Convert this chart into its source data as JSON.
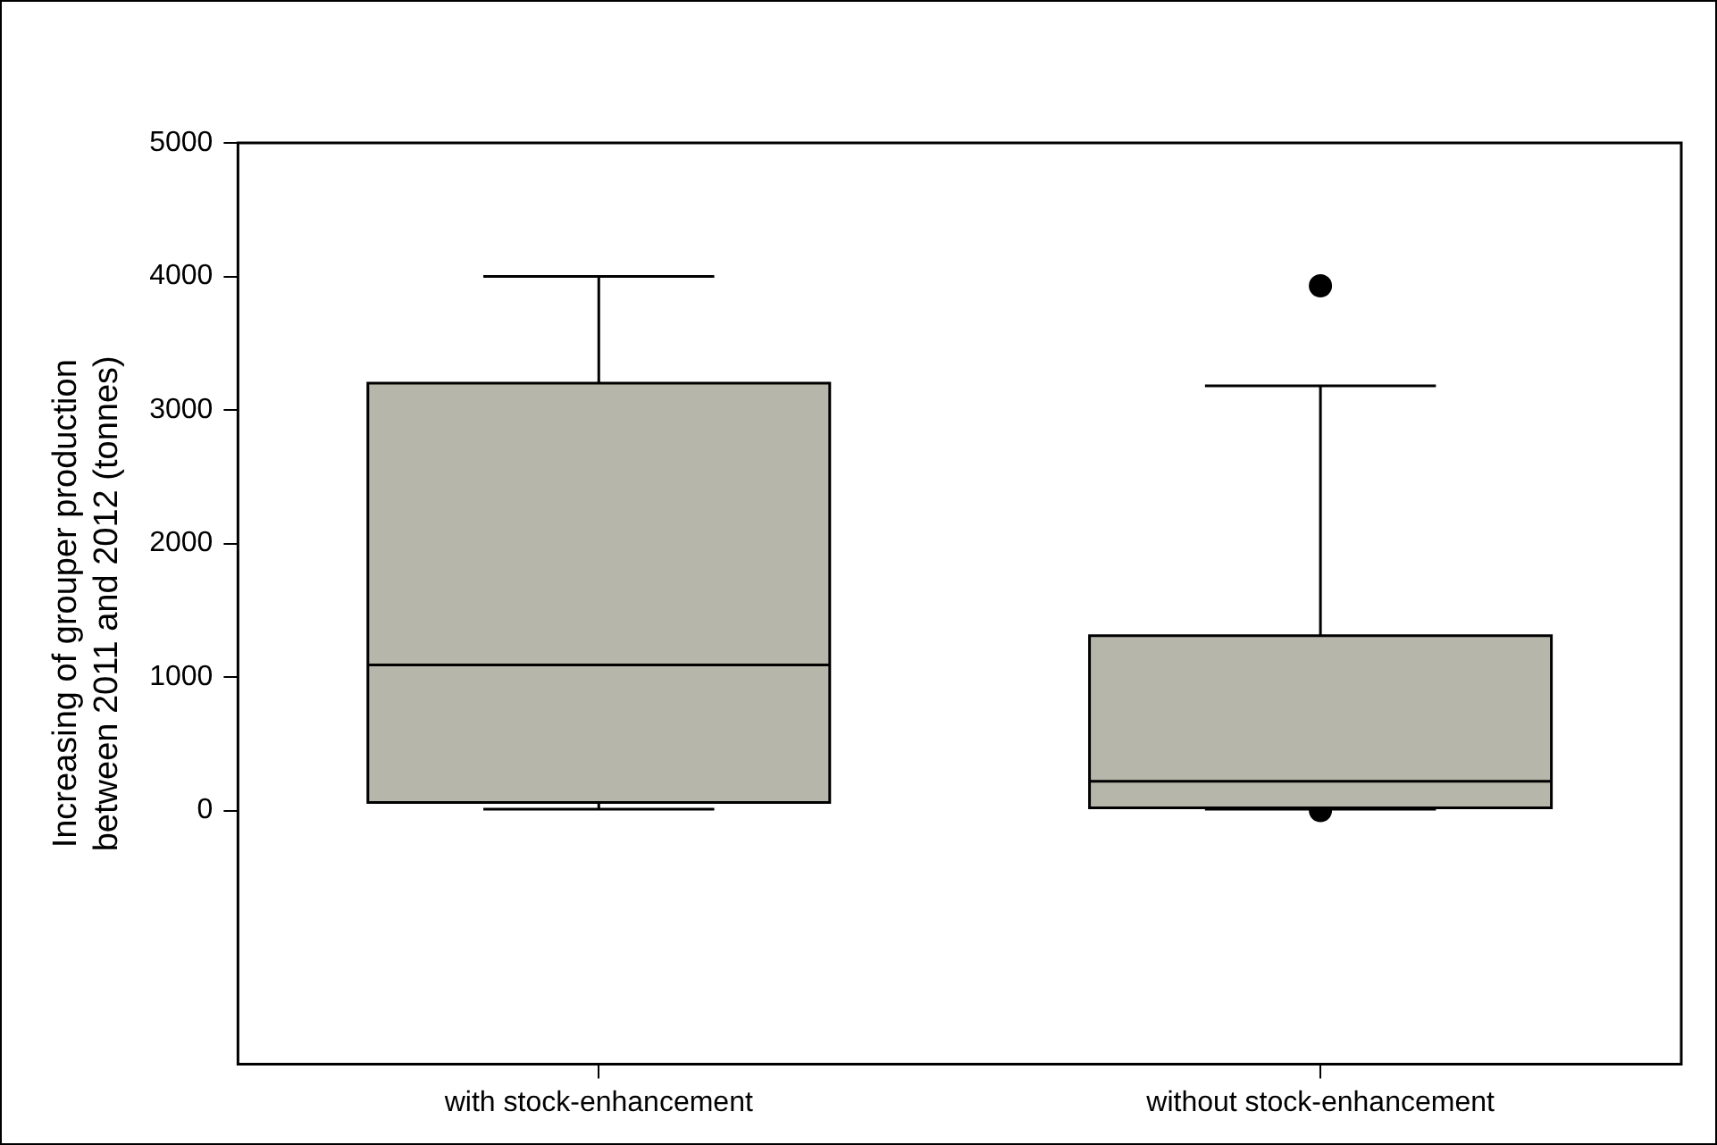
{
  "chart_data": {
    "type": "box",
    "ylabel": "Increasing of grouper production\nbetween 2011 and 2012 (tonnes)",
    "categories": [
      "with stock-enhancement",
      "without stock-enhancement"
    ],
    "color": "#b6b6aa",
    "boxes": [
      {
        "low": 10,
        "q1": 60,
        "median": 1090,
        "q3": 3200,
        "high": 4000
      },
      {
        "low": 10,
        "q1": 20,
        "median": 220,
        "q3": 1310,
        "high": 3180,
        "outliers": [
          3930,
          0
        ]
      }
    ],
    "ylim": [
      -1900,
      5000
    ],
    "yticks": [
      0,
      1000,
      2000,
      3000,
      4000,
      5000
    ],
    "grid": false,
    "legend": false
  }
}
